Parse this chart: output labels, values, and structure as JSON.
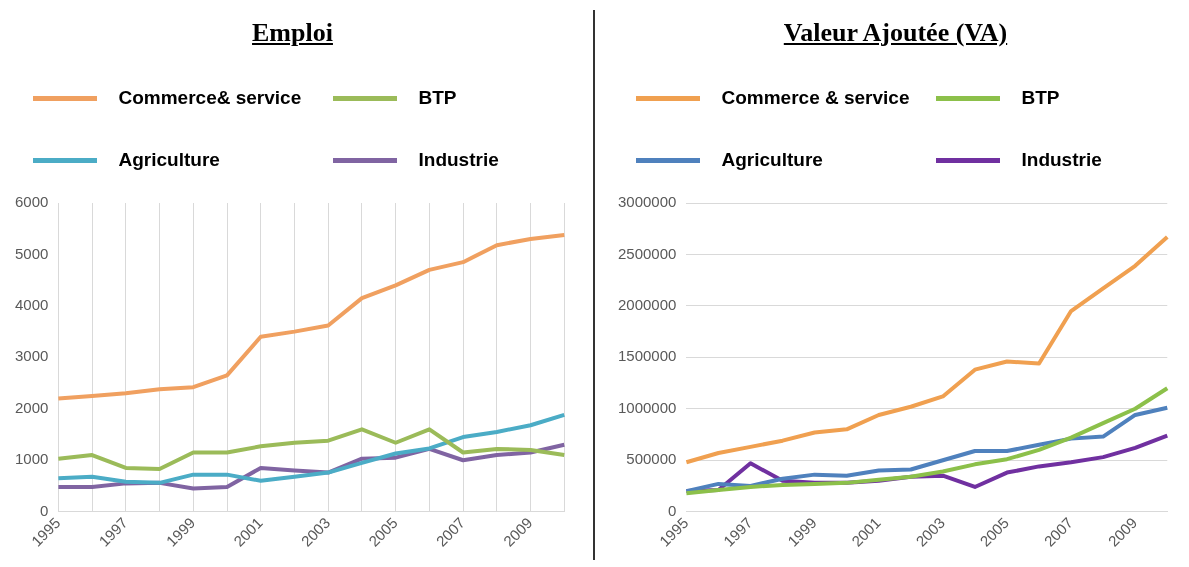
{
  "chart_data": [
    {
      "type": "line",
      "title": "Emploi",
      "legend": "top",
      "grid": "x",
      "categories": [
        "1995",
        null,
        "1997",
        null,
        "1999",
        null,
        "2001",
        null,
        "2003",
        null,
        "2005",
        null,
        "2007",
        null,
        "2009",
        null
      ],
      "ylim": [
        0,
        6000
      ],
      "yticks": [
        0,
        1000,
        2000,
        3000,
        4000,
        5000,
        6000
      ],
      "series": [
        {
          "name": "Commerce& service",
          "color": "#f0a060",
          "values": [
            2200,
            2250,
            2300,
            2380,
            2420,
            2650,
            3400,
            3500,
            3620,
            4150,
            4400,
            4700,
            4850,
            5180,
            5300,
            5380
          ]
        },
        {
          "name": "BTP",
          "color": "#9bbb59",
          "values": [
            1030,
            1100,
            850,
            830,
            1150,
            1150,
            1270,
            1340,
            1380,
            1600,
            1340,
            1600,
            1150,
            1220,
            1200,
            1100
          ]
        },
        {
          "name": "Agriculture",
          "color": "#4bacc6",
          "values": [
            650,
            680,
            580,
            560,
            720,
            720,
            600,
            680,
            760,
            950,
            1130,
            1230,
            1450,
            1550,
            1680,
            1880
          ]
        },
        {
          "name": "Industrie",
          "color": "#8064a2",
          "values": [
            480,
            480,
            550,
            560,
            450,
            480,
            850,
            800,
            760,
            1030,
            1050,
            1220,
            1000,
            1100,
            1150,
            1300
          ]
        }
      ]
    },
    {
      "type": "line",
      "title": "Valeur Ajoutée (VA)",
      "legend": "top",
      "grid": "y",
      "categories": [
        "1995",
        null,
        "1997",
        null,
        "1999",
        null,
        "2001",
        null,
        "2003",
        null,
        "2005",
        null,
        "2007",
        null,
        "2009",
        null
      ],
      "ylim": [
        0,
        3000000
      ],
      "yticks": [
        0,
        500000,
        1000000,
        1500000,
        2000000,
        2500000,
        3000000
      ],
      "series": [
        {
          "name": "Commerce & service",
          "color": "#f0a050",
          "values": [
            480000,
            570000,
            630000,
            690000,
            770000,
            800000,
            940000,
            1020000,
            1120000,
            1380000,
            1460000,
            1440000,
            1950000,
            2170000,
            2390000,
            2670000
          ]
        },
        {
          "name": "BTP",
          "color": "#8cc04a",
          "values": [
            180000,
            210000,
            240000,
            260000,
            270000,
            280000,
            310000,
            340000,
            390000,
            460000,
            510000,
            600000,
            720000,
            860000,
            1000000,
            1200000
          ]
        },
        {
          "name": "Agriculture",
          "color": "#4f81bd",
          "values": [
            200000,
            270000,
            250000,
            320000,
            360000,
            350000,
            400000,
            410000,
            500000,
            590000,
            590000,
            650000,
            710000,
            730000,
            940000,
            1010000
          ]
        },
        {
          "name": "Industrie",
          "color": "#7030a0",
          "values": [
            200000,
            210000,
            470000,
            300000,
            280000,
            280000,
            300000,
            340000,
            350000,
            240000,
            380000,
            440000,
            480000,
            530000,
            620000,
            740000
          ]
        }
      ]
    }
  ]
}
